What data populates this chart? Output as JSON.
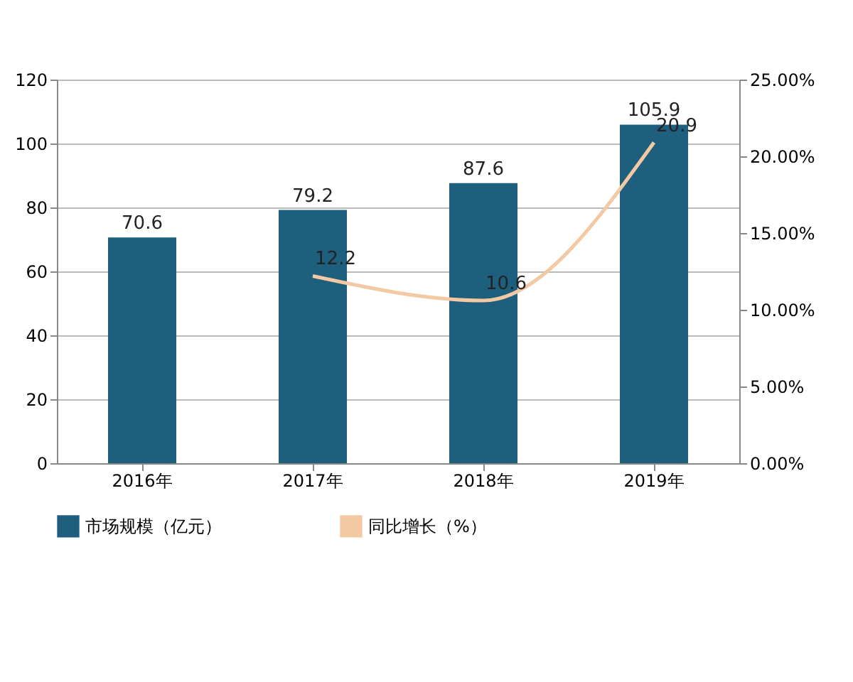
{
  "chart_data": {
    "type": "bar",
    "categories": [
      "2016年",
      "2017年",
      "2018年",
      "2019年"
    ],
    "series": [
      {
        "name": "市场规模（亿元）",
        "color": "#1d5f7d",
        "values": [
          70.6,
          79.2,
          87.6,
          105.9
        ]
      },
      {
        "name": "同比增长（%）",
        "type": "line",
        "axis": "y2",
        "color": "#f2c9a3",
        "values": [
          null,
          12.2,
          10.6,
          20.9
        ]
      }
    ],
    "ylim": [
      0,
      120
    ],
    "yticks": [
      0,
      20,
      40,
      60,
      80,
      100,
      120
    ],
    "y2lim": [
      0,
      25
    ],
    "y2ticks": [
      {
        "value": 0,
        "label": "0.00%"
      },
      {
        "value": 5,
        "label": "5.00%"
      },
      {
        "value": 10,
        "label": "10.00%"
      },
      {
        "value": 15,
        "label": "15.00%"
      },
      {
        "value": 20,
        "label": "20.00%"
      },
      {
        "value": 25,
        "label": "25.00%"
      }
    ],
    "grid": "y",
    "legend": "bottom",
    "data_labels": true,
    "marker": "none"
  }
}
